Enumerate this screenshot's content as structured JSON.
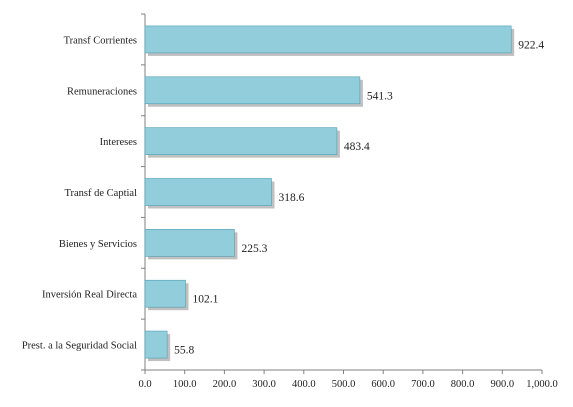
{
  "chart_data": {
    "type": "bar",
    "orientation": "horizontal",
    "categories": [
      "Transf Corrientes",
      "Remuneraciones",
      "Intereses",
      "Transf de Captial",
      "Bienes y Servicios",
      "Inversión Real Directa",
      "Prest. a la Seguridad Social"
    ],
    "values": [
      922.4,
      541.3,
      483.4,
      318.6,
      225.3,
      102.1,
      55.8
    ],
    "value_labels": [
      "922.4",
      "541.3",
      "483.4",
      "318.6",
      "225.3",
      "102.1",
      "55.8"
    ],
    "xlim": [
      0,
      1000
    ],
    "x_ticks": [
      0,
      100,
      200,
      300,
      400,
      500,
      600,
      700,
      800,
      900,
      1000
    ],
    "x_tick_labels": [
      "0.0",
      "100.0",
      "200.0",
      "300.0",
      "400.0",
      "500.0",
      "600.0",
      "700.0",
      "800.0",
      "900.0",
      "1,000.0"
    ],
    "title": "",
    "xlabel": "",
    "ylabel": "",
    "grid": false,
    "legend": "none",
    "colors": {
      "bar_fill": "#92cddc",
      "bar_stroke": "#4f9fb4",
      "bar_shadow": "#8c8c8c",
      "axis": "#808080"
    }
  }
}
